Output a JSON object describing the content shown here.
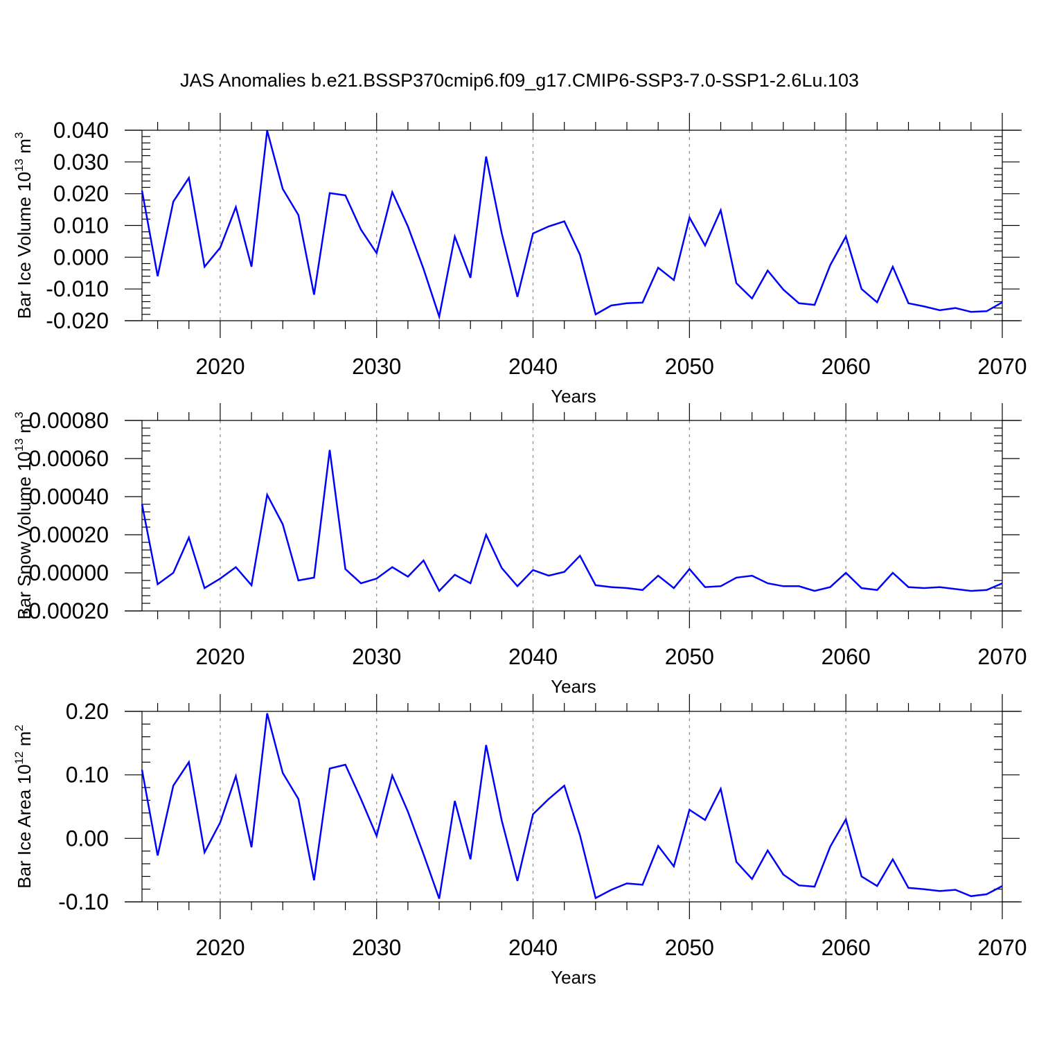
{
  "chart_data": {
    "type": "line",
    "title": "JAS Anomalies b.e21.BSSP370cmip6.f09_g17.CMIP6-SSP3-7.0-SSP1-2.6Lu.103",
    "series_color": "#0000ff",
    "x": [
      2015,
      2016,
      2017,
      2018,
      2019,
      2020,
      2021,
      2022,
      2023,
      2024,
      2025,
      2026,
      2027,
      2028,
      2029,
      2030,
      2031,
      2032,
      2033,
      2034,
      2035,
      2036,
      2037,
      2038,
      2039,
      2040,
      2041,
      2042,
      2043,
      2044,
      2045,
      2046,
      2047,
      2048,
      2049,
      2050,
      2051,
      2052,
      2053,
      2054,
      2055,
      2056,
      2057,
      2058,
      2059,
      2060,
      2061,
      2062,
      2063,
      2064,
      2065,
      2066,
      2067,
      2068,
      2069,
      2070
    ],
    "panels": [
      {
        "id": "ice-volume",
        "ylabel": "Bar Ice Volume 10",
        "ylabel_sup": "13",
        "ylabel_unit": " m",
        "ylabel_unit_sup": "3",
        "xlabel": "Years",
        "xlim": [
          2015,
          2070
        ],
        "ylim": [
          -0.02,
          0.04
        ],
        "yticks": [
          -0.02,
          -0.01,
          0.0,
          0.01,
          0.02,
          0.03,
          0.04
        ],
        "yticklabels": [
          "-0.020",
          "-0.010",
          "0.000",
          "0.010",
          "0.020",
          "0.030",
          "0.040"
        ],
        "xticks": [
          2020,
          2030,
          2040,
          2050,
          2060,
          2070
        ],
        "xticklabels": [
          "2020",
          "2030",
          "2040",
          "2050",
          "2060",
          "2070"
        ],
        "values": [
          0.021,
          -0.006,
          0.0175,
          0.025,
          -0.003,
          0.003,
          0.0158,
          -0.003,
          0.0399,
          0.0215,
          0.0133,
          -0.0118,
          0.0202,
          0.0195,
          0.0087,
          0.0013,
          0.0205,
          0.0097,
          -0.0037,
          -0.0187,
          0.0065,
          -0.0065,
          0.0317,
          0.0075,
          -0.0125,
          0.0075,
          0.0097,
          0.0113,
          0.0008,
          -0.018,
          -0.0152,
          -0.0145,
          -0.0143,
          -0.0033,
          -0.0072,
          0.0125,
          0.0037,
          0.0148,
          -0.0082,
          -0.013,
          -0.0042,
          -0.0102,
          -0.0145,
          -0.015,
          -0.0025,
          0.0065,
          -0.01,
          -0.0142,
          -0.003,
          -0.0145,
          -0.0155,
          -0.0167,
          -0.016,
          -0.0172,
          -0.017,
          -0.0142
        ]
      },
      {
        "id": "snow-volume",
        "ylabel": "Bar Snow Volume 10",
        "ylabel_sup": "13",
        "ylabel_unit": " m",
        "ylabel_unit_sup": "3",
        "xlabel": "Years",
        "xlim": [
          2015,
          2070
        ],
        "ylim": [
          -0.0002,
          0.0008
        ],
        "yticks": [
          -0.0002,
          0.0,
          0.0002,
          0.0004,
          0.0006,
          0.0008
        ],
        "yticklabels": [
          "-0.00020",
          "0.00000",
          "0.00020",
          "0.00040",
          "0.00060",
          "0.00080"
        ],
        "xticks": [
          2020,
          2030,
          2040,
          2050,
          2060,
          2070
        ],
        "xticklabels": [
          "2020",
          "2030",
          "2040",
          "2050",
          "2060",
          "2070"
        ],
        "values": [
          0.00036,
          -6e-05,
          0.0,
          0.000185,
          -8e-05,
          -3e-05,
          3e-05,
          -6.5e-05,
          0.00041,
          0.000255,
          -4e-05,
          -2.5e-05,
          0.000645,
          2e-05,
          -5.5e-05,
          -3e-05,
          3e-05,
          -2e-05,
          6.5e-05,
          -9.5e-05,
          -1e-05,
          -5.5e-05,
          0.0002,
          2.5e-05,
          -7e-05,
          1.5e-05,
          -1.5e-05,
          5e-06,
          9e-05,
          -6.5e-05,
          -7.5e-05,
          -8e-05,
          -9e-05,
          -1.5e-05,
          -8e-05,
          2e-05,
          -7.5e-05,
          -7e-05,
          -2.5e-05,
          -1.5e-05,
          -5.5e-05,
          -7e-05,
          -7e-05,
          -9.5e-05,
          -7.5e-05,
          0.0,
          -8e-05,
          -9e-05,
          0.0,
          -7.5e-05,
          -8e-05,
          -7.5e-05,
          -8.5e-05,
          -9.5e-05,
          -9e-05,
          -5.5e-05
        ]
      },
      {
        "id": "ice-area",
        "ylabel": "Bar Ice Area 10",
        "ylabel_sup": "12",
        "ylabel_unit": " m",
        "ylabel_unit_sup": "2",
        "xlabel": "Years",
        "xlim": [
          2015,
          2070
        ],
        "ylim": [
          -0.1,
          0.2
        ],
        "yticks": [
          -0.1,
          0.0,
          0.1,
          0.2
        ],
        "yticklabels": [
          "-0.10",
          "0.00",
          "0.10",
          "0.20"
        ],
        "xticks": [
          2020,
          2030,
          2040,
          2050,
          2060,
          2070
        ],
        "xticklabels": [
          "2020",
          "2030",
          "2040",
          "2050",
          "2060",
          "2070"
        ],
        "values": [
          0.108,
          -0.027,
          0.083,
          0.12,
          -0.022,
          0.025,
          0.098,
          -0.014,
          0.197,
          0.103,
          0.062,
          -0.066,
          0.11,
          0.116,
          0.062,
          0.004,
          0.099,
          0.042,
          -0.025,
          -0.095,
          0.059,
          -0.033,
          0.147,
          0.028,
          -0.067,
          0.038,
          0.062,
          0.083,
          0.005,
          -0.094,
          -0.081,
          -0.071,
          -0.073,
          -0.012,
          -0.044,
          0.045,
          0.029,
          0.078,
          -0.037,
          -0.064,
          -0.019,
          -0.057,
          -0.074,
          -0.076,
          -0.013,
          0.03,
          -0.06,
          -0.075,
          -0.033,
          -0.078,
          -0.08,
          -0.083,
          -0.081,
          -0.091,
          -0.088,
          -0.075
        ]
      }
    ]
  }
}
